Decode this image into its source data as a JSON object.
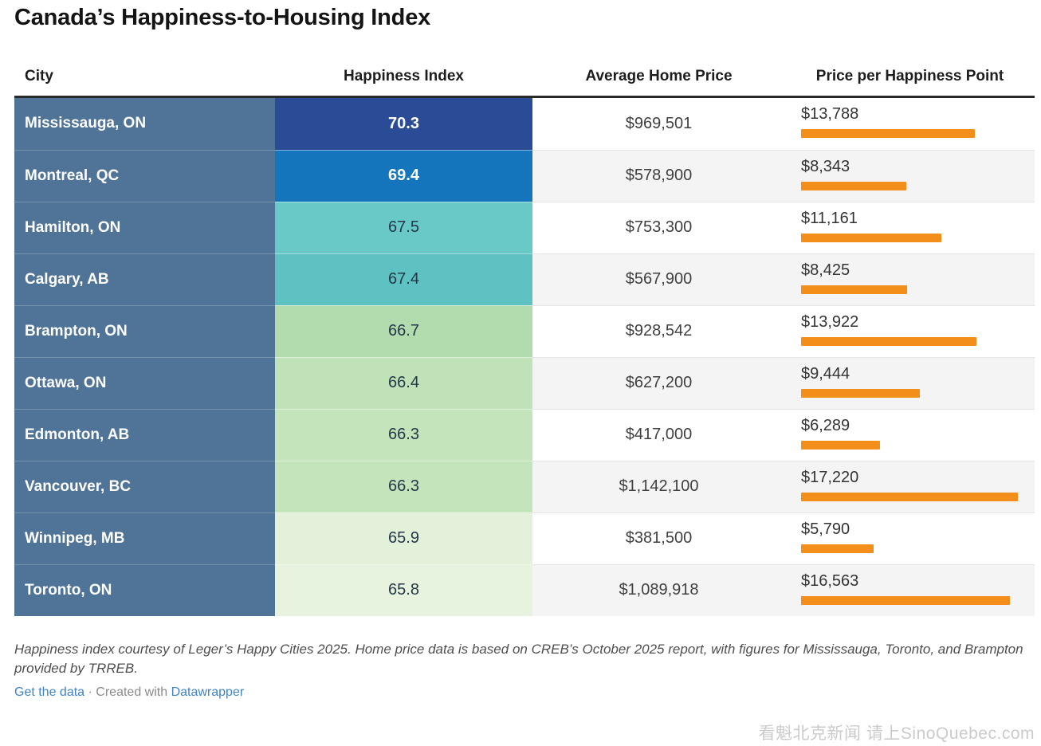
{
  "title": "Canada’s Happiness-to-Housing Index",
  "colors": {
    "city_column_bg": "#4f7497",
    "bar_orange": "#f38e1b",
    "header_rule": "#2a2a2a",
    "alt_row_bg": "#f4f4f4",
    "link_blue": "#4084c7",
    "dark_cell_text": "#243746"
  },
  "table": {
    "columns": [
      "City",
      "Happiness Index",
      "Average Home Price",
      "Price per Happiness Point"
    ],
    "bar_max": 17220,
    "rows": [
      {
        "city": "Mississauga, ON",
        "hi": "70.3",
        "hi_bg": "#2a4b96",
        "hi_fg": "#ffffff",
        "hi_bold": true,
        "price": "$969,501",
        "pph_label": "$13,788",
        "pph": 13788
      },
      {
        "city": "Montreal, QC",
        "hi": "69.4",
        "hi_bg": "#1474bc",
        "hi_fg": "#ffffff",
        "hi_bold": true,
        "price": "$578,900",
        "pph_label": "$8,343",
        "pph": 8343
      },
      {
        "city": "Hamilton, ON",
        "hi": "67.5",
        "hi_bg": "#69c9c7",
        "hi_fg": "#243746",
        "hi_bold": false,
        "price": "$753,300",
        "pph_label": "$11,161",
        "pph": 11161
      },
      {
        "city": "Calgary, AB",
        "hi": "67.4",
        "hi_bg": "#5ec2c2",
        "hi_fg": "#243746",
        "hi_bold": false,
        "price": "$567,900",
        "pph_label": "$8,425",
        "pph": 8425
      },
      {
        "city": "Brampton, ON",
        "hi": "66.7",
        "hi_bg": "#b3dcae",
        "hi_fg": "#243746",
        "hi_bold": false,
        "price": "$928,542",
        "pph_label": "$13,922",
        "pph": 13922
      },
      {
        "city": "Ottawa, ON",
        "hi": "66.4",
        "hi_bg": "#c0e2b8",
        "hi_fg": "#243746",
        "hi_bold": false,
        "price": "$627,200",
        "pph_label": "$9,444",
        "pph": 9444
      },
      {
        "city": "Edmonton, AB",
        "hi": "66.3",
        "hi_bg": "#c4e4bb",
        "hi_fg": "#243746",
        "hi_bold": false,
        "price": "$417,000",
        "pph_label": "$6,289",
        "pph": 6289
      },
      {
        "city": "Vancouver, BC",
        "hi": "66.3",
        "hi_bg": "#c4e4bb",
        "hi_fg": "#243746",
        "hi_bold": false,
        "price": "$1,142,100",
        "pph_label": "$17,220",
        "pph": 17220
      },
      {
        "city": "Winnipeg, MB",
        "hi": "65.9",
        "hi_bg": "#e3f1da",
        "hi_fg": "#243746",
        "hi_bold": false,
        "price": "$381,500",
        "pph_label": "$5,790",
        "pph": 5790
      },
      {
        "city": "Toronto, ON",
        "hi": "65.8",
        "hi_bg": "#e7f3de",
        "hi_fg": "#243746",
        "hi_bold": false,
        "price": "$1,089,918",
        "pph_label": "$16,563",
        "pph": 16563
      }
    ]
  },
  "chart_data": {
    "type": "table",
    "title": "Canada’s Happiness-to-Housing Index",
    "columns": [
      "City",
      "Happiness Index",
      "Average Home Price",
      "Price per Happiness Point"
    ],
    "legend_position": "none",
    "embedded_bar_series": {
      "name": "Price per Happiness Point",
      "max": 17220,
      "color": "#f38e1b"
    },
    "rows": [
      {
        "city": "Mississauga, ON",
        "happiness_index": 70.3,
        "average_home_price": 969501,
        "price_per_happiness_point": 13788
      },
      {
        "city": "Montreal, QC",
        "happiness_index": 69.4,
        "average_home_price": 578900,
        "price_per_happiness_point": 8343
      },
      {
        "city": "Hamilton, ON",
        "happiness_index": 67.5,
        "average_home_price": 753300,
        "price_per_happiness_point": 11161
      },
      {
        "city": "Calgary, AB",
        "happiness_index": 67.4,
        "average_home_price": 567900,
        "price_per_happiness_point": 8425
      },
      {
        "city": "Brampton, ON",
        "happiness_index": 66.7,
        "average_home_price": 928542,
        "price_per_happiness_point": 13922
      },
      {
        "city": "Ottawa, ON",
        "happiness_index": 66.4,
        "average_home_price": 627200,
        "price_per_happiness_point": 9444
      },
      {
        "city": "Edmonton, AB",
        "happiness_index": 66.3,
        "average_home_price": 417000,
        "price_per_happiness_point": 6289
      },
      {
        "city": "Vancouver, BC",
        "happiness_index": 66.3,
        "average_home_price": 1142100,
        "price_per_happiness_point": 17220
      },
      {
        "city": "Winnipeg, MB",
        "happiness_index": 65.9,
        "average_home_price": 381500,
        "price_per_happiness_point": 5790
      },
      {
        "city": "Toronto, ON",
        "happiness_index": 65.8,
        "average_home_price": 1089918,
        "price_per_happiness_point": 16563
      }
    ]
  },
  "footer": {
    "footnote": "Happiness index courtesy of Leger’s Happy Cities 2025. Home price data is based on CREB’s October 2025 report, with figures for Mississauga, Toronto, and Brampton provided by TRREB.",
    "get_data_label": "Get the data",
    "separator": "·",
    "created_with_label": "Created with",
    "datawrapper_label": "Datawrapper"
  },
  "watermark": "看魁北克新闻 请上SinoQuebec.com"
}
